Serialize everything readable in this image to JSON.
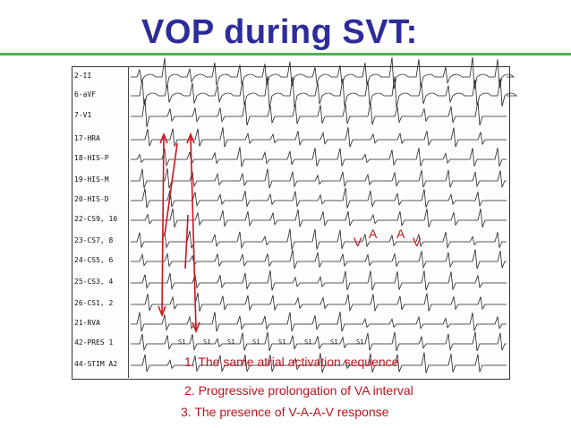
{
  "slide": {
    "title": "VOP during SVT:"
  },
  "channels": [
    "2-II",
    "6-aVF",
    "7-V1",
    "17-HRA",
    "18-HIS-P",
    "19-HIS-M",
    "20-HIS-D",
    "22-CS9, 10",
    "23-CS7, 8",
    "24-CS5, 6",
    "25-CS3, 4",
    "26-CS1, 2",
    "21-RVA",
    "42-PRES 1",
    "44-STIM A2"
  ],
  "stim_labels": [
    "S1",
    "S1",
    "S1",
    "S1",
    "S1",
    "S1",
    "S1",
    "S1"
  ],
  "annotations": {
    "a1": "A",
    "a2": "A",
    "v1": "V",
    "v2": "V"
  },
  "notes": [
    "1. The same atrial activation sequence",
    "2. Progressive prolongation of VA interval",
    "3. The presence of V-A-A-V response"
  ],
  "colors": {
    "title": "#2c2c9a",
    "rule": "#4bb34b",
    "annotation": "#c0121b"
  }
}
